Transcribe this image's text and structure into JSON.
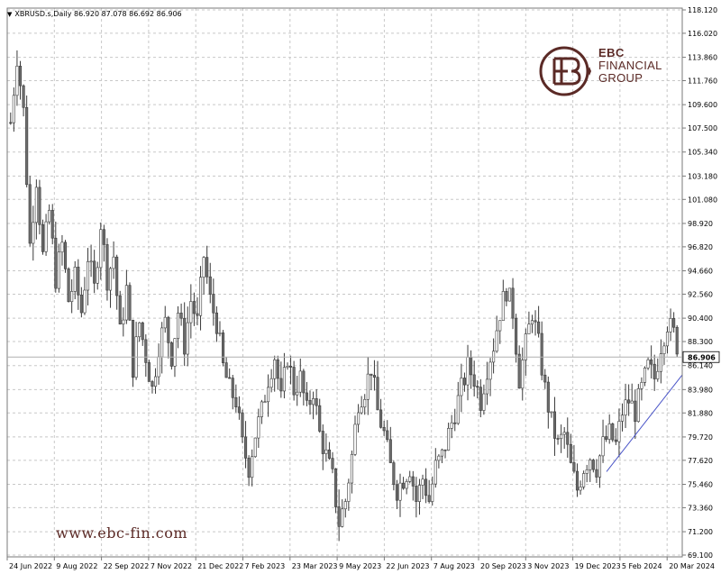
{
  "chart_data": {
    "type": "candlestick",
    "symbol_line": "XBRUSD.s,Daily  86.920 87.078 86.692 86.906",
    "website": "www.ebc-fin.com",
    "logo": {
      "line1": "EBC",
      "line2": "FINANCIAL",
      "line3": "GROUP"
    },
    "current_price_label": "86.906",
    "current_price": 86.906,
    "ylim": [
      69.1,
      118.12
    ],
    "y_ticks": [
      "118.120",
      "116.020",
      "113.860",
      "111.760",
      "109.600",
      "107.500",
      "105.340",
      "103.180",
      "101.080",
      "98.920",
      "96.820",
      "94.660",
      "92.560",
      "90.400",
      "88.300",
      "86.140",
      "83.980",
      "81.880",
      "79.720",
      "77.620",
      "75.460",
      "73.360",
      "71.200",
      "69.100"
    ],
    "x_labels": [
      "24 Jun 2022",
      "9 Aug 2022",
      "22 Sep 2022",
      "7 Nov 2022",
      "21 Dec 2022",
      "7 Feb 2023",
      "23 Mar 2023",
      "9 May 2023",
      "22 Jun 2023",
      "7 Aug 2023",
      "20 Sep 2023",
      "3 Nov 2023",
      "19 Dec 2023",
      "5 Feb 2024",
      "20 Mar 2024"
    ],
    "grid": true,
    "trendline": {
      "start": {
        "date": "5 Feb 2024",
        "price": 76.6
      },
      "end": {
        "date": "20 Mar 2024",
        "price": 85.3
      }
    },
    "price_path": [
      [
        0,
        108
      ],
      [
        2,
        114
      ],
      [
        4,
        109
      ],
      [
        6,
        97
      ],
      [
        8,
        103
      ],
      [
        10,
        96
      ],
      [
        12,
        100
      ],
      [
        14,
        94
      ],
      [
        16,
        97
      ],
      [
        18,
        92
      ],
      [
        20,
        94
      ],
      [
        22,
        91
      ],
      [
        24,
        96
      ],
      [
        26,
        93
      ],
      [
        28,
        99
      ],
      [
        30,
        94
      ],
      [
        32,
        96
      ],
      [
        34,
        89
      ],
      [
        36,
        93
      ],
      [
        38,
        86
      ],
      [
        40,
        90
      ],
      [
        42,
        87
      ],
      [
        44,
        84
      ],
      [
        46,
        88
      ],
      [
        48,
        90
      ],
      [
        50,
        87
      ],
      [
        52,
        91
      ],
      [
        54,
        88
      ],
      [
        56,
        92
      ],
      [
        58,
        90
      ],
      [
        60,
        96
      ],
      [
        62,
        92
      ],
      [
        64,
        90
      ],
      [
        66,
        86
      ],
      [
        68,
        84
      ],
      [
        70,
        83
      ],
      [
        72,
        79
      ],
      [
        74,
        77
      ],
      [
        76,
        80
      ],
      [
        78,
        82
      ],
      [
        80,
        85
      ],
      [
        82,
        87
      ],
      [
        84,
        83
      ],
      [
        86,
        87
      ],
      [
        88,
        84
      ],
      [
        90,
        85
      ],
      [
        92,
        82
      ],
      [
        94,
        84
      ],
      [
        96,
        80
      ],
      [
        98,
        78
      ],
      [
        100,
        76
      ],
      [
        102,
        72
      ],
      [
        104,
        74
      ],
      [
        106,
        78
      ],
      [
        108,
        83
      ],
      [
        110,
        84
      ],
      [
        112,
        86
      ],
      [
        114,
        82
      ],
      [
        116,
        80
      ],
      [
        118,
        77
      ],
      [
        120,
        75
      ],
      [
        122,
        76
      ],
      [
        124,
        77
      ],
      [
        126,
        74
      ],
      [
        128,
        76
      ],
      [
        130,
        74
      ],
      [
        132,
        77
      ],
      [
        134,
        78
      ],
      [
        136,
        80
      ],
      [
        138,
        82
      ],
      [
        140,
        84
      ],
      [
        142,
        86
      ],
      [
        144,
        85
      ],
      [
        146,
        83
      ],
      [
        148,
        86
      ],
      [
        150,
        88
      ],
      [
        152,
        91
      ],
      [
        154,
        93
      ],
      [
        156,
        91
      ],
      [
        158,
        85
      ],
      [
        160,
        88
      ],
      [
        162,
        91
      ],
      [
        164,
        88
      ],
      [
        166,
        84
      ],
      [
        168,
        81
      ],
      [
        170,
        79
      ],
      [
        172,
        80
      ],
      [
        174,
        77
      ],
      [
        176,
        75
      ],
      [
        178,
        77
      ],
      [
        180,
        78
      ],
      [
        182,
        77
      ],
      [
        184,
        79
      ],
      [
        186,
        80
      ],
      [
        188,
        79
      ],
      [
        190,
        82
      ],
      [
        192,
        83
      ],
      [
        194,
        82
      ],
      [
        196,
        84
      ],
      [
        198,
        86
      ],
      [
        200,
        85
      ],
      [
        202,
        88
      ],
      [
        204,
        90
      ],
      [
        206,
        89
      ],
      [
        208,
        87
      ]
    ]
  }
}
